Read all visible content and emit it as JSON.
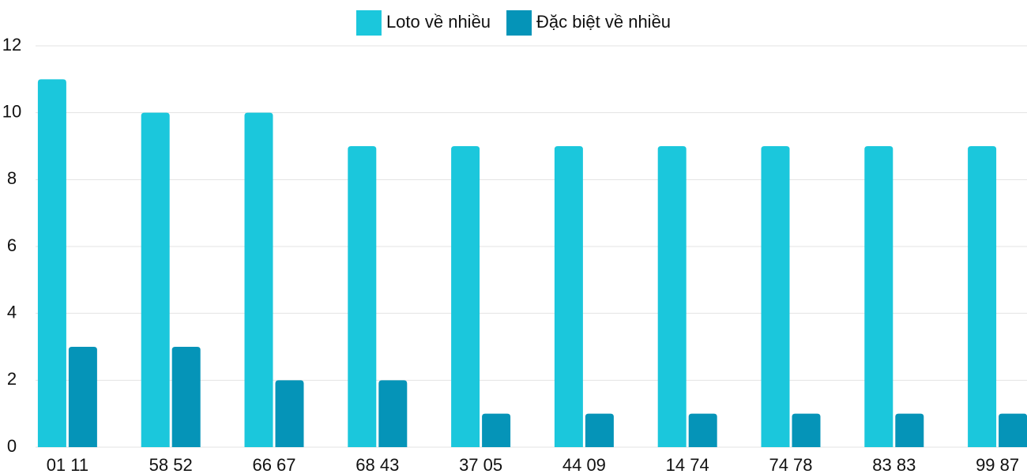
{
  "chart_data": {
    "type": "bar",
    "categories": [
      "01 11",
      "58 52",
      "66 67",
      "68 43",
      "37 05",
      "44 09",
      "14 74",
      "74 78",
      "83 83",
      "99 87"
    ],
    "series": [
      {
        "name": "Loto về nhiều",
        "color": "#1bc7dc",
        "values": [
          11,
          10,
          10,
          9,
          9,
          9,
          9,
          9,
          9,
          9
        ]
      },
      {
        "name": "Đặc biệt về nhiều",
        "color": "#0594b8",
        "values": [
          3,
          3,
          2,
          2,
          1,
          1,
          1,
          1,
          1,
          1
        ]
      }
    ],
    "ylim": [
      0,
      12
    ],
    "yticks": [
      0,
      2,
      4,
      6,
      8,
      10,
      12
    ],
    "grid": true,
    "legend": "top"
  }
}
